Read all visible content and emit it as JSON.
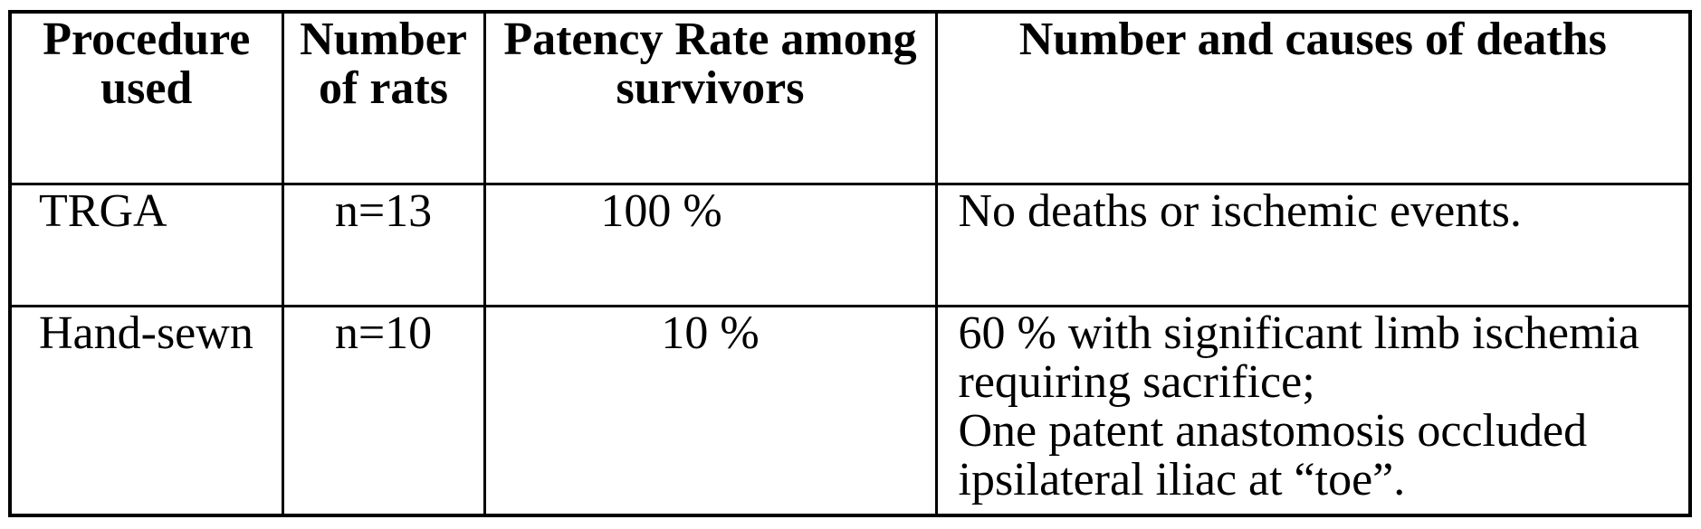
{
  "table": {
    "headers": [
      "Procedure\nused",
      "Number\nof rats",
      "Patency Rate among\nsurvivors",
      "Number and causes of deaths"
    ],
    "rows": [
      {
        "procedure": "TRGA",
        "rats": "n=13",
        "patency": "100 %",
        "deaths": "No deaths or ischemic events."
      },
      {
        "procedure": "Hand-sewn",
        "rats": "n=10",
        "patency": "10 %",
        "deaths": "60 % with significant limb ischemia\nrequiring sacrifice;\nOne patent anastomosis occluded\nipsilateral iliac at “toe”."
      }
    ]
  },
  "colors": {
    "text": "#000000",
    "border": "#000000",
    "page_background": "#ffffff"
  }
}
